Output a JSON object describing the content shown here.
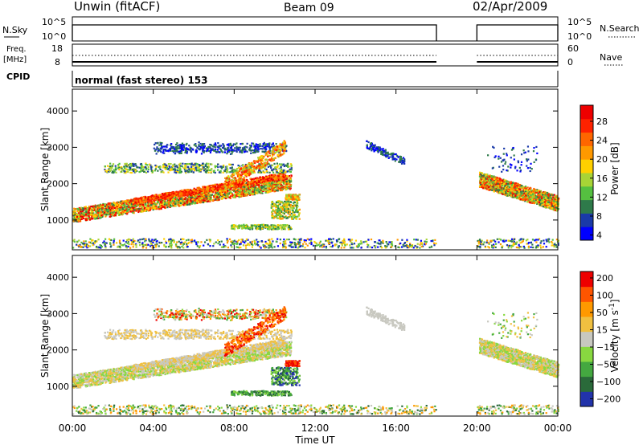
{
  "header": {
    "title": "Unwin (fitACF)",
    "beam": "Beam 09",
    "date": "02/Apr/2009"
  },
  "panels": {
    "nsky": {
      "label": "N.Sky",
      "left_ticks": [
        "10^5",
        "10^0"
      ],
      "right_ticks": [
        "10^5",
        "10^0"
      ],
      "right_label": "N.Search"
    },
    "freq": {
      "label_top": "Freq.",
      "label_unit": "[MHz]",
      "left_ticks": [
        "18",
        "8"
      ],
      "right_ticks": [
        "60",
        "0"
      ],
      "right_label": "Nave"
    },
    "cpid": {
      "label": "CPID",
      "text": "normal (fast stereo) 153"
    }
  },
  "chart_data": [
    {
      "type": "heatmap",
      "name": "power",
      "ylabel": "Slant Range [km]",
      "ylim": [
        180,
        4600
      ],
      "yticks": [
        "1000",
        "2000",
        "3000",
        "4000"
      ],
      "colorbar": {
        "label": "Power [dB]",
        "ticks": [
          "28",
          "24",
          "20",
          "16",
          "12",
          "8",
          "4"
        ],
        "colors": [
          "#0000ff",
          "#1a3aa8",
          "#2e7a4a",
          "#55c040",
          "#a8d436",
          "#ffd000",
          "#ff9900",
          "#ff6600",
          "#ff2200",
          "#ee0000"
        ]
      }
    },
    {
      "type": "heatmap",
      "name": "velocity",
      "ylabel": "Slant Range [km]",
      "ylim": [
        180,
        4600
      ],
      "yticks": [
        "1000",
        "2000",
        "3000",
        "4000"
      ],
      "colorbar": {
        "label": "Velocity [m s^-1]",
        "ticks": [
          "200",
          "100",
          "50",
          "15",
          "-15",
          "-50",
          "-100",
          "-200"
        ],
        "colors": [
          "#2233aa",
          "#2a6a3a",
          "#44a840",
          "#88d840",
          "#c8c8c0",
          "#f0c040",
          "#ff9900",
          "#ff5500",
          "#ee0000"
        ]
      }
    }
  ],
  "x_axis": {
    "label": "Time UT",
    "ticks": [
      "00:00",
      "04:00",
      "08:00",
      "12:00",
      "16:00",
      "20:00",
      "00:00"
    ],
    "xlim_hours": [
      0,
      24
    ],
    "data_gap_hours": [
      18,
      20
    ]
  }
}
